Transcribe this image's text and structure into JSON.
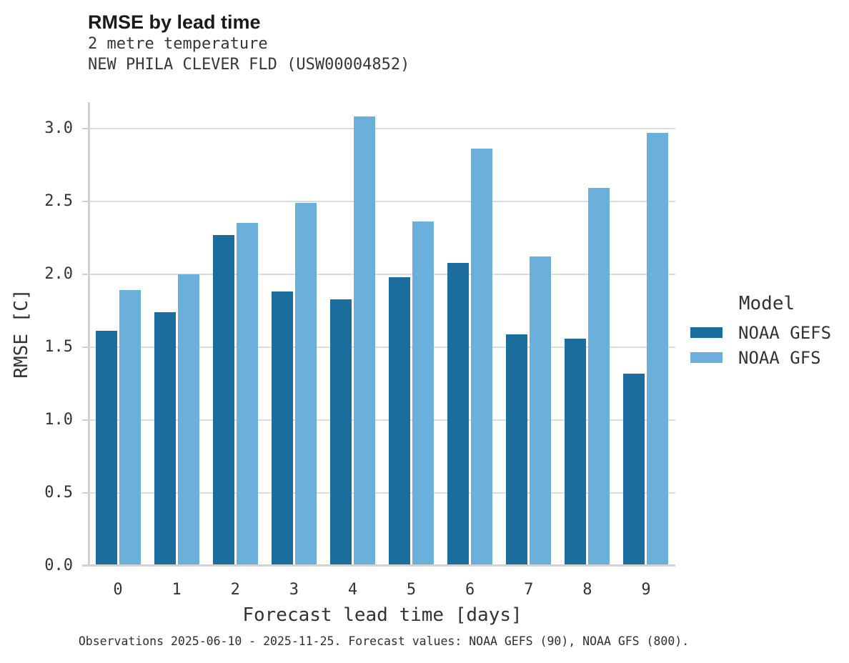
{
  "chart_data": {
    "type": "bar",
    "title": "RMSE by lead time",
    "subtitle": [
      "2 metre temperature",
      "NEW PHILA CLEVER FLD (USW00004852)"
    ],
    "categories": [
      "0",
      "1",
      "2",
      "3",
      "4",
      "5",
      "6",
      "7",
      "8",
      "9"
    ],
    "series": [
      {
        "name": "NOAA GEFS",
        "color": "#1b6d9d",
        "values": [
          1.61,
          1.74,
          2.27,
          1.88,
          1.83,
          1.98,
          2.08,
          1.59,
          1.56,
          1.32
        ]
      },
      {
        "name": "NOAA GFS",
        "color": "#6bb0db",
        "values": [
          1.89,
          2.0,
          2.35,
          2.49,
          3.08,
          2.36,
          2.86,
          2.12,
          2.59,
          2.97
        ]
      }
    ],
    "xlabel": "Forecast lead time [days]",
    "ylabel": "RMSE [C]",
    "ylim": [
      0.0,
      3.18
    ],
    "yticks": [
      0.0,
      0.5,
      1.0,
      1.5,
      2.0,
      2.5,
      3.0
    ],
    "grid": "horizontal",
    "legend_title": "Model",
    "legend_position": "right"
  },
  "caption": "Observations 2025-06-10 - 2025-11-25. Forecast values: NOAA GEFS (90), NOAA GFS (800)."
}
